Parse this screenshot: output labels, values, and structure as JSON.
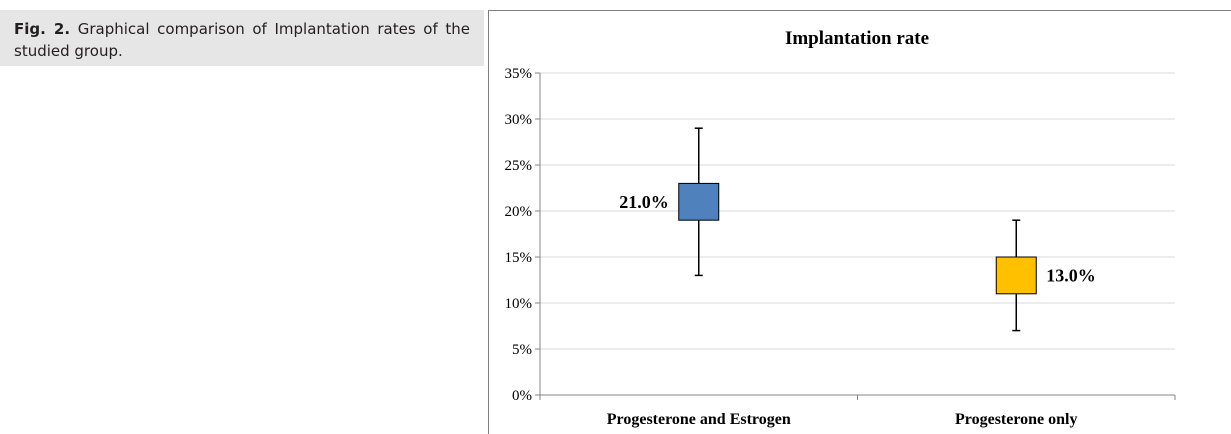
{
  "caption": {
    "label": "Fig. 2.",
    "text": "Graphical comparison of Implantation rates of the studied group."
  },
  "chart_data": {
    "type": "boxplot",
    "title": "Implantation rate",
    "ylim": [
      0,
      35
    ],
    "yticks": [
      "0%",
      "5%",
      "10%",
      "15%",
      "20%",
      "25%",
      "30%",
      "35%"
    ],
    "grid": true,
    "categories": [
      "Progesterone and Estrogen",
      "Progesterone only"
    ],
    "boxes": [
      {
        "category": "Progesterone and Estrogen",
        "whisker_low": 13,
        "q1": 19,
        "q3": 23,
        "whisker_high": 29,
        "value_label": "21.0%",
        "color": "#4f81bd"
      },
      {
        "category": "Progesterone only",
        "whisker_low": 7,
        "q1": 11,
        "q3": 15,
        "whisker_high": 19,
        "value_label": "13.0%",
        "color": "#ffc000"
      }
    ]
  }
}
